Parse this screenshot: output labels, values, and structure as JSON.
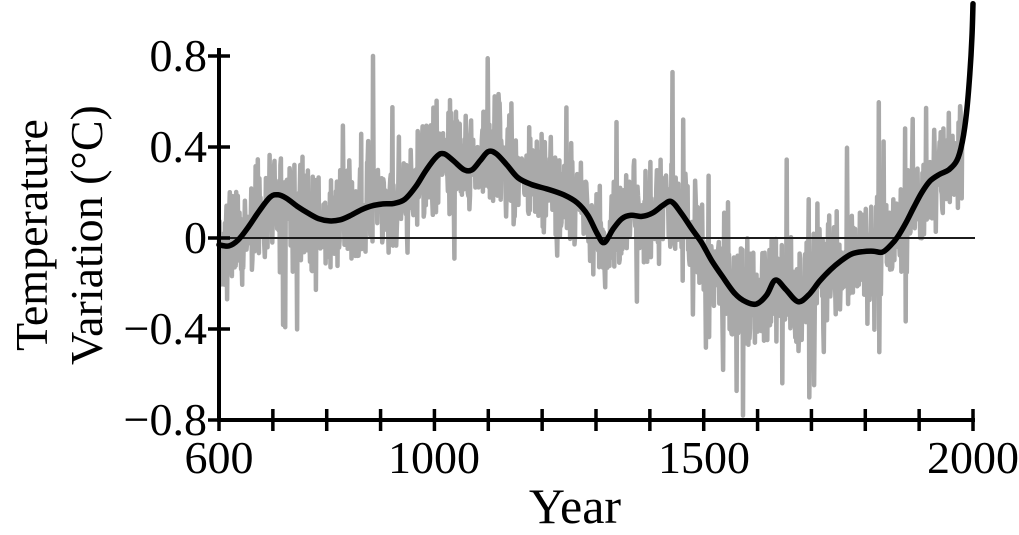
{
  "chart_data": {
    "type": "line",
    "xlabel": "Year",
    "ylabel": "Temperature Variation (°C)",
    "ylabel_line1": "Temperature",
    "ylabel_line2": "Variation (°C)",
    "xlim": [
      600,
      2000
    ],
    "ylim": [
      -0.8,
      0.8
    ],
    "grid": false,
    "legend": "none",
    "x_labeled_ticks": [
      600,
      1000,
      1500,
      2000
    ],
    "x_tick_labels": [
      "600",
      "1000",
      "1500",
      "2000"
    ],
    "x_minor_tick_step": 100,
    "y_ticks": [
      0.8,
      0.4,
      0,
      -0.4,
      -0.8
    ],
    "y_tick_labels": [
      "0.8",
      "0.4",
      "0",
      "−0.4",
      "−0.8"
    ],
    "zero_line": true,
    "series": [
      {
        "name": "annual-values",
        "description": "Noisy annual temperature variation values, drawn in gray; spans ~AD 600-1980, oscillating around the smoothed trend with typical amplitude ±0.15°C and extremes near +0.8°C (around AD 886 and 1099) and −0.78°C (around AD 1573).",
        "color": "#a9a9a9",
        "line_width": 4.5,
        "generation": {
          "start": 600,
          "end": 1980,
          "step": 1,
          "seed": 11,
          "amp1": 0.3,
          "amp2": 0.22,
          "spike_prob": 0.06,
          "spike_base": 0.15,
          "spike_rand": 0.3,
          "clip_min": -0.78,
          "clip_max": 0.85,
          "overrides": [
            [
              886,
              0.8
            ],
            [
              1099,
              0.79
            ],
            [
              1573,
              -0.78
            ],
            [
              1536,
              -0.58
            ]
          ]
        }
      },
      {
        "name": "smoothed-trend",
        "description": "Black low-frequency smoothed temperature variation curve.",
        "color": "#000000",
        "line_width": 5.5,
        "points": [
          [
            600,
            -0.03
          ],
          [
            618,
            -0.035
          ],
          [
            635,
            -0.01
          ],
          [
            655,
            0.05
          ],
          [
            675,
            0.12
          ],
          [
            695,
            0.18
          ],
          [
            710,
            0.19
          ],
          [
            725,
            0.175
          ],
          [
            745,
            0.14
          ],
          [
            765,
            0.11
          ],
          [
            785,
            0.085
          ],
          [
            805,
            0.075
          ],
          [
            825,
            0.08
          ],
          [
            845,
            0.1
          ],
          [
            865,
            0.125
          ],
          [
            885,
            0.142
          ],
          [
            905,
            0.15
          ],
          [
            925,
            0.152
          ],
          [
            945,
            0.17
          ],
          [
            965,
            0.225
          ],
          [
            985,
            0.3
          ],
          [
            1005,
            0.36
          ],
          [
            1018,
            0.37
          ],
          [
            1035,
            0.34
          ],
          [
            1055,
            0.3
          ],
          [
            1070,
            0.3
          ],
          [
            1085,
            0.34
          ],
          [
            1100,
            0.38
          ],
          [
            1115,
            0.37
          ],
          [
            1135,
            0.32
          ],
          [
            1155,
            0.265
          ],
          [
            1180,
            0.235
          ],
          [
            1210,
            0.215
          ],
          [
            1240,
            0.19
          ],
          [
            1265,
            0.155
          ],
          [
            1285,
            0.1
          ],
          [
            1302,
            0.02
          ],
          [
            1315,
            -0.02
          ],
          [
            1332,
            0.04
          ],
          [
            1348,
            0.085
          ],
          [
            1365,
            0.1
          ],
          [
            1385,
            0.095
          ],
          [
            1405,
            0.11
          ],
          [
            1425,
            0.145
          ],
          [
            1440,
            0.16
          ],
          [
            1458,
            0.11
          ],
          [
            1478,
            0.04
          ],
          [
            1496,
            -0.02
          ],
          [
            1515,
            -0.1
          ],
          [
            1535,
            -0.17
          ],
          [
            1558,
            -0.245
          ],
          [
            1578,
            -0.28
          ],
          [
            1598,
            -0.29
          ],
          [
            1617,
            -0.25
          ],
          [
            1633,
            -0.185
          ],
          [
            1652,
            -0.225
          ],
          [
            1675,
            -0.28
          ],
          [
            1695,
            -0.25
          ],
          [
            1715,
            -0.19
          ],
          [
            1735,
            -0.14
          ],
          [
            1755,
            -0.1
          ],
          [
            1775,
            -0.07
          ],
          [
            1795,
            -0.06
          ],
          [
            1815,
            -0.058
          ],
          [
            1832,
            -0.062
          ],
          [
            1848,
            -0.03
          ],
          [
            1860,
            0.005
          ],
          [
            1875,
            0.065
          ],
          [
            1890,
            0.135
          ],
          [
            1905,
            0.2
          ],
          [
            1920,
            0.25
          ],
          [
            1938,
            0.28
          ],
          [
            1955,
            0.3
          ],
          [
            1970,
            0.34
          ],
          [
            1980,
            0.42
          ],
          [
            1988,
            0.55
          ],
          [
            1994,
            0.72
          ],
          [
            1998,
            0.88
          ],
          [
            2000,
            1.03
          ]
        ]
      }
    ],
    "colors": {
      "background": "#ffffff",
      "axis": "#000000",
      "zero_line": "#1c1c1c",
      "annual_series": "#a9a9a9",
      "smoothed_series": "#000000",
      "text": "#000000"
    }
  }
}
